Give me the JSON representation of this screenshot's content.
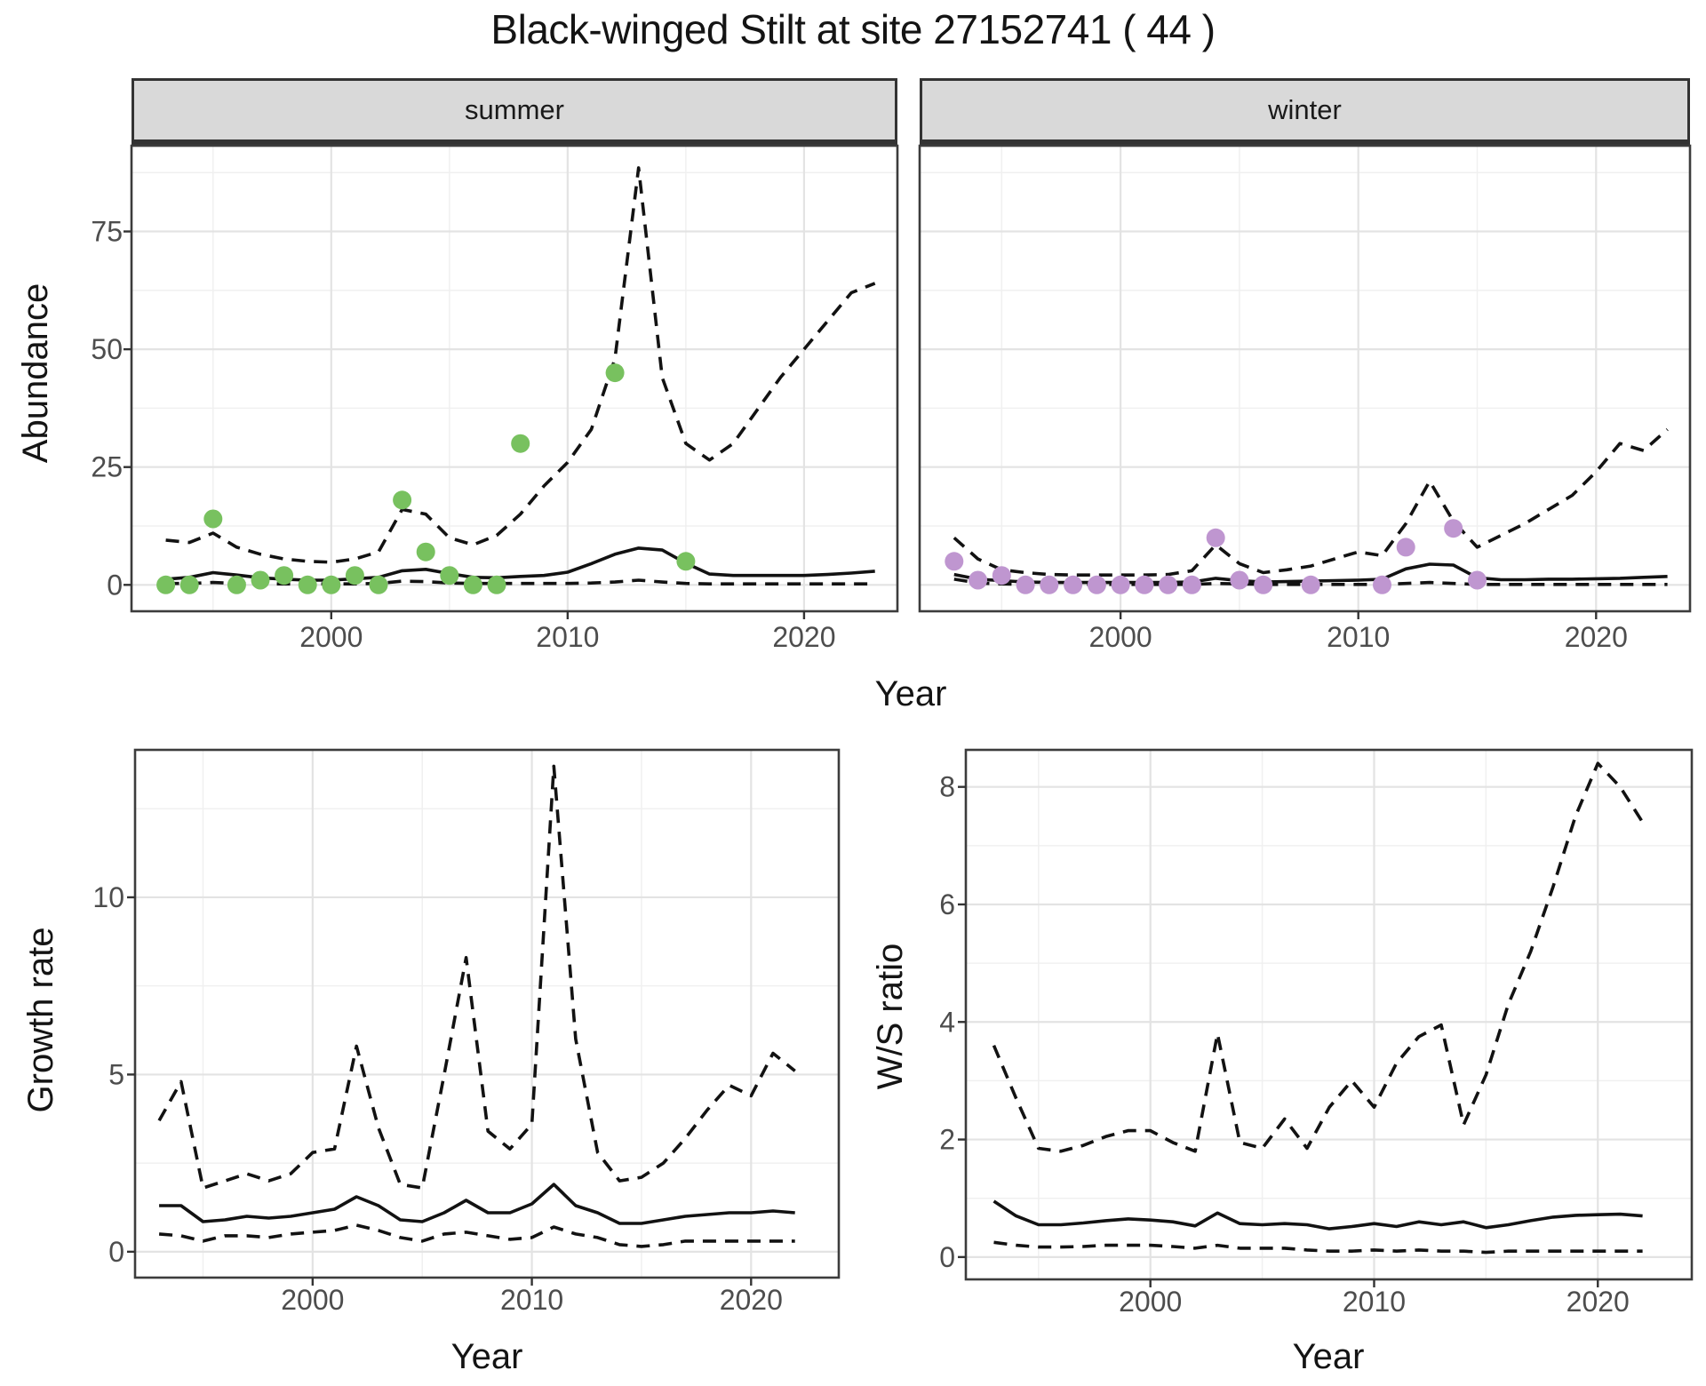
{
  "title": "Black-winged Stilt at site 27152741 ( 44 )",
  "facets": [
    {
      "label": "summer"
    },
    {
      "label": "winter"
    }
  ],
  "axis_titles": {
    "abundance": "Abundance",
    "growth": "Growth rate",
    "ws_ratio": "W/S ratio",
    "year_top": "Year",
    "year_bottom_left": "Year",
    "year_bottom_right": "Year"
  },
  "colors": {
    "summer_point": "#78C15F",
    "winter_point": "#BF96D0",
    "line": "#121212",
    "strip_fill": "#D9D9D9",
    "strip_border": "#333333",
    "panel_border": "#3C3C3C",
    "grid_major": "#E3E3E3",
    "grid_minor": "#F0F0F0",
    "tick_mark": "#333333",
    "tick_label": "#4D4D4D",
    "text": "#141414"
  },
  "chart_data": [
    {
      "id": "summer-abundance",
      "type": "line",
      "facet": "summer",
      "ylabel": "Abundance",
      "xlabel": "Year",
      "x": [
        1993,
        1994,
        1995,
        1996,
        1997,
        1998,
        1999,
        2000,
        2001,
        2002,
        2003,
        2004,
        2005,
        2006,
        2007,
        2008,
        2009,
        2010,
        2011,
        2012,
        2013,
        2014,
        2015,
        2016,
        2017,
        2018,
        2019,
        2020,
        2021,
        2022,
        2023
      ],
      "series": [
        {
          "name": "median",
          "style": "solid",
          "values": [
            1.2,
            1.6,
            2.6,
            2.1,
            1.5,
            1.2,
            1.0,
            1.0,
            1.3,
            1.6,
            3.0,
            3.3,
            2.4,
            1.6,
            1.5,
            1.8,
            2.0,
            2.7,
            4.5,
            6.5,
            7.8,
            7.4,
            4.6,
            2.3,
            2.0,
            2.0,
            2.0,
            2.0,
            2.2,
            2.5,
            2.9
          ]
        },
        {
          "name": "upper 95% CI",
          "style": "dashed",
          "values": [
            9.5,
            9,
            11,
            8,
            6.5,
            5.5,
            5,
            4.8,
            5.5,
            7,
            16,
            15,
            10,
            8.5,
            10.5,
            15,
            21,
            26,
            33,
            48,
            88.5,
            44,
            30,
            26.5,
            30,
            37,
            44,
            50,
            56,
            62,
            64
          ]
        },
        {
          "name": "lower 95% CI",
          "style": "dashed",
          "values": [
            0.3,
            0.3,
            0.5,
            0.3,
            0.2,
            0.2,
            0.2,
            0.2,
            0.2,
            0.3,
            0.8,
            0.7,
            0.4,
            0.3,
            0.3,
            0.3,
            0.3,
            0.3,
            0.4,
            0.6,
            1.0,
            0.6,
            0.3,
            0.2,
            0.2,
            0.2,
            0.2,
            0.2,
            0.2,
            0.2,
            0.2
          ]
        }
      ],
      "points": {
        "name": "observed counts",
        "color_key": "summer_point",
        "x": [
          1993,
          1994,
          1995,
          1996,
          1997,
          1998,
          1999,
          2000,
          2001,
          2002,
          2003,
          2004,
          2005,
          2006,
          2007,
          2008,
          2012,
          2015
        ],
        "y": [
          0,
          0,
          14,
          0,
          1,
          2,
          0,
          0,
          2,
          0,
          18,
          7,
          2,
          0,
          0,
          30,
          45,
          5
        ]
      },
      "xlim": [
        1991.55,
        2023.95
      ],
      "ylim": [
        -5.6,
        93.2
      ],
      "xticks": [
        2000,
        2010,
        2020
      ],
      "yticks": [
        0,
        25,
        50,
        75
      ],
      "x_minor": [
        1995,
        2005,
        2015
      ],
      "y_minor": [
        12.5,
        37.5,
        62.5,
        87.5
      ],
      "show_y_tick_labels": true
    },
    {
      "id": "winter-abundance",
      "type": "line",
      "facet": "winter",
      "ylabel": "Abundance",
      "xlabel": "Year",
      "x": [
        1993,
        1994,
        1995,
        1996,
        1997,
        1998,
        1999,
        2000,
        2001,
        2002,
        2003,
        2004,
        2005,
        2006,
        2007,
        2008,
        2009,
        2010,
        2011,
        2012,
        2013,
        2014,
        2015,
        2016,
        2017,
        2018,
        2019,
        2020,
        2021,
        2022,
        2023
      ],
      "series": [
        {
          "name": "median",
          "style": "solid",
          "values": [
            2.2,
            1.2,
            0.9,
            0.6,
            0.5,
            0.5,
            0.5,
            0.5,
            0.5,
            0.5,
            0.6,
            1.4,
            0.9,
            0.6,
            0.7,
            0.8,
            0.9,
            1.0,
            1.2,
            3.4,
            4.4,
            4.2,
            1.5,
            1.1,
            1.1,
            1.2,
            1.2,
            1.3,
            1.4,
            1.6,
            1.8
          ]
        },
        {
          "name": "upper 95% CI",
          "style": "dashed",
          "values": [
            10,
            5.5,
            3.2,
            2.6,
            2.2,
            2.1,
            2.1,
            2.1,
            2.1,
            2.2,
            3,
            8.5,
            4.5,
            2.6,
            3.2,
            4,
            5.5,
            7,
            6.2,
            13,
            22,
            13.5,
            8,
            10.5,
            13,
            16,
            19,
            24,
            30,
            28.5,
            33
          ]
        },
        {
          "name": "lower 95% CI",
          "style": "dashed",
          "values": [
            1.2,
            0.4,
            0.2,
            0.1,
            0.1,
            0.1,
            0.1,
            0.1,
            0.1,
            0.1,
            0.1,
            0.3,
            0.2,
            0.1,
            0.1,
            0.1,
            0.1,
            0.1,
            0.1,
            0.3,
            0.5,
            0.3,
            0.1,
            0.1,
            0.1,
            0.1,
            0.1,
            0.1,
            0.1,
            0.1,
            0.1
          ]
        }
      ],
      "points": {
        "name": "observed counts",
        "color_key": "winter_point",
        "x": [
          1993,
          1994,
          1995,
          1996,
          1997,
          1998,
          1999,
          2000,
          2001,
          2002,
          2003,
          2004,
          2005,
          2006,
          2008,
          2011,
          2012,
          2014,
          2015
        ],
        "y": [
          5,
          1,
          2,
          0,
          0,
          0,
          0,
          0,
          0,
          0,
          0,
          10,
          1,
          0,
          0,
          0,
          8,
          12,
          1
        ]
      },
      "xlim": [
        1991.55,
        2023.95
      ],
      "ylim": [
        -5.6,
        93.2
      ],
      "xticks": [
        2000,
        2010,
        2020
      ],
      "yticks": [
        0,
        25,
        50,
        75
      ],
      "x_minor": [
        1995,
        2005,
        2015
      ],
      "y_minor": [
        12.5,
        37.5,
        62.5,
        87.5
      ],
      "show_y_tick_labels": false
    },
    {
      "id": "growth-rate",
      "type": "line",
      "facet": null,
      "ylabel": "Growth rate",
      "xlabel": "Year",
      "x": [
        1993,
        1994,
        1995,
        1996,
        1997,
        1998,
        1999,
        2000,
        2001,
        2002,
        2003,
        2004,
        2005,
        2006,
        2007,
        2008,
        2009,
        2010,
        2011,
        2012,
        2013,
        2014,
        2015,
        2016,
        2017,
        2018,
        2019,
        2020,
        2021,
        2022
      ],
      "series": [
        {
          "name": "median",
          "style": "solid",
          "values": [
            1.3,
            1.3,
            0.85,
            0.9,
            1.0,
            0.95,
            1.0,
            1.1,
            1.2,
            1.55,
            1.3,
            0.9,
            0.85,
            1.1,
            1.45,
            1.1,
            1.1,
            1.35,
            1.9,
            1.3,
            1.1,
            0.8,
            0.8,
            0.9,
            1.0,
            1.05,
            1.1,
            1.1,
            1.15,
            1.1
          ]
        },
        {
          "name": "upper 95% CI",
          "style": "dashed",
          "values": [
            3.7,
            4.8,
            1.8,
            2.0,
            2.2,
            2.0,
            2.2,
            2.8,
            2.9,
            5.8,
            3.5,
            1.9,
            1.8,
            5.0,
            8.3,
            3.4,
            2.9,
            3.6,
            13.7,
            6.0,
            2.8,
            2.0,
            2.1,
            2.5,
            3.2,
            4.0,
            4.7,
            4.4,
            5.6,
            5.1
          ]
        },
        {
          "name": "lower 95% CI",
          "style": "dashed",
          "values": [
            0.5,
            0.45,
            0.3,
            0.45,
            0.45,
            0.4,
            0.5,
            0.55,
            0.6,
            0.75,
            0.6,
            0.4,
            0.3,
            0.5,
            0.55,
            0.45,
            0.35,
            0.4,
            0.7,
            0.5,
            0.4,
            0.2,
            0.15,
            0.2,
            0.3,
            0.3,
            0.3,
            0.3,
            0.3,
            0.3
          ]
        }
      ],
      "points": null,
      "xlim": [
        1991.9,
        2024.0
      ],
      "ylim": [
        -0.73,
        14.16
      ],
      "xticks": [
        2000,
        2010,
        2020
      ],
      "yticks": [
        0,
        5,
        10
      ],
      "x_minor": [
        1995,
        2005,
        2015
      ],
      "y_minor": [
        2.5,
        7.5,
        12.5
      ],
      "show_y_tick_labels": true
    },
    {
      "id": "ws-ratio",
      "type": "line",
      "facet": null,
      "ylabel": "W/S ratio",
      "xlabel": "Year",
      "x": [
        1993,
        1994,
        1995,
        1996,
        1997,
        1998,
        1999,
        2000,
        2001,
        2002,
        2003,
        2004,
        2005,
        2006,
        2007,
        2008,
        2009,
        2010,
        2011,
        2012,
        2013,
        2014,
        2015,
        2016,
        2017,
        2018,
        2019,
        2020,
        2021,
        2022
      ],
      "series": [
        {
          "name": "median",
          "style": "solid",
          "values": [
            0.95,
            0.7,
            0.55,
            0.55,
            0.58,
            0.62,
            0.65,
            0.63,
            0.6,
            0.53,
            0.75,
            0.57,
            0.55,
            0.57,
            0.55,
            0.48,
            0.52,
            0.57,
            0.52,
            0.6,
            0.55,
            0.6,
            0.5,
            0.55,
            0.62,
            0.68,
            0.71,
            0.72,
            0.73,
            0.7
          ]
        },
        {
          "name": "upper 95% CI",
          "style": "dashed",
          "values": [
            3.6,
            2.7,
            1.85,
            1.8,
            1.9,
            2.05,
            2.15,
            2.15,
            1.95,
            1.8,
            3.8,
            1.95,
            1.85,
            2.35,
            1.85,
            2.55,
            3.0,
            2.55,
            3.3,
            3.75,
            3.95,
            2.25,
            3.1,
            4.3,
            5.2,
            6.3,
            7.5,
            8.4,
            8.0,
            7.4
          ]
        },
        {
          "name": "lower 95% CI",
          "style": "dashed",
          "values": [
            0.25,
            0.2,
            0.17,
            0.17,
            0.18,
            0.2,
            0.2,
            0.2,
            0.18,
            0.15,
            0.2,
            0.15,
            0.15,
            0.15,
            0.12,
            0.1,
            0.1,
            0.12,
            0.1,
            0.12,
            0.1,
            0.1,
            0.08,
            0.1,
            0.1,
            0.1,
            0.1,
            0.1,
            0.1,
            0.1
          ]
        }
      ],
      "points": null,
      "xlim": [
        1991.75,
        2024.2
      ],
      "ylim": [
        -0.38,
        8.63
      ],
      "xticks": [
        2000,
        2010,
        2020
      ],
      "yticks": [
        0,
        2,
        4,
        6,
        8
      ],
      "x_minor": [
        1995,
        2005,
        2015
      ],
      "y_minor": [
        1,
        3,
        5,
        7
      ],
      "show_y_tick_labels": true
    }
  ]
}
